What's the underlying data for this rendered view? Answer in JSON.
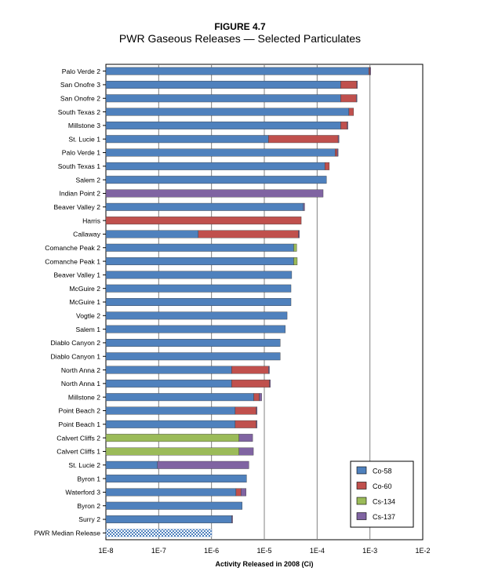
{
  "figure": {
    "title": "FIGURE 4.7",
    "subtitle": "PWR Gaseous Releases — Selected Particulates"
  },
  "colors": {
    "Co-58": "#4f81bd",
    "Co-60": "#c0504d",
    "Cs-134": "#9bbb59",
    "Cs-137": "#8064a2",
    "median": "#4f81bd"
  },
  "chart_data": {
    "type": "bar",
    "orientation": "horizontal",
    "stacked": true,
    "xscale": "log",
    "xlim": [
      1e-08,
      0.01
    ],
    "xlabel": "Activity Released in 2008 (Ci)",
    "ylabel": "",
    "xticks": [
      1e-08,
      1e-07,
      1e-06,
      1e-05,
      0.0001,
      0.001,
      0.01
    ],
    "xtick_labels": [
      "1E-8",
      "1E-7",
      "1E-6",
      "1E-5",
      "1E-4",
      "1E-3",
      "1E-2"
    ],
    "grid": "vertical gridlines at decades",
    "legend_position": "bottom-right",
    "legend": [
      "Co-58",
      "Co-60",
      "Cs-134",
      "Cs-137"
    ],
    "categories": [
      "Palo Verde 2",
      "San Onofre 3",
      "San Onofre 2",
      "South Texas 2",
      "Millstone 3",
      "St. Lucie 1",
      "Palo Verde 1",
      "South Texas 1",
      "Salem 2",
      "Indian Point 2",
      "Beaver Valley 2",
      "Harris",
      "Callaway",
      "Comanche Peak 2",
      "Comanche Peak 1",
      "Beaver Valley 1",
      "McGuire 2",
      "McGuire 1",
      "Vogtle 2",
      "Salem 1",
      "Diablo Canyon 2",
      "Diablo Canyon 1",
      "North Anna 2",
      "North Anna 1",
      "Millstone 2",
      "Point Beach 2",
      "Point Beach 1",
      "Calvert Cliffs 2",
      "Calvert Cliffs 1",
      "St. Lucie 2",
      "Byron 1",
      "Waterford 3",
      "Byron 2",
      "Surry 2",
      "PWR Median Release"
    ],
    "bars": [
      {
        "label": "Palo Verde 2",
        "segments": [
          [
            "Co-58",
            0.00095
          ],
          [
            "Co-60",
            5e-05
          ],
          [
            "Cs-137",
            1e-05
          ]
        ]
      },
      {
        "label": "San Onofre 3",
        "segments": [
          [
            "Co-58",
            0.00028
          ],
          [
            "Co-60",
            0.00028
          ],
          [
            "Cs-137",
            1e-05
          ]
        ]
      },
      {
        "label": "San Onofre 2",
        "segments": [
          [
            "Co-58",
            0.00028
          ],
          [
            "Co-60",
            0.00027
          ],
          [
            "Cs-137",
            1e-05
          ]
        ]
      },
      {
        "label": "South Texas 2",
        "segments": [
          [
            "Co-58",
            0.0004
          ],
          [
            "Co-60",
            9e-05
          ]
        ]
      },
      {
        "label": "Millstone 3",
        "segments": [
          [
            "Co-58",
            0.00028
          ],
          [
            "Co-60",
            9e-05
          ],
          [
            "Cs-137",
            1e-05
          ]
        ]
      },
      {
        "label": "St. Lucie 1",
        "segments": [
          [
            "Co-58",
            1.2e-05
          ],
          [
            "Co-60",
            0.000238
          ],
          [
            "Cs-137",
            1e-05
          ]
        ]
      },
      {
        "label": "Palo Verde 1",
        "segments": [
          [
            "Co-58",
            0.00022
          ],
          [
            "Co-60",
            2e-05
          ],
          [
            "Cs-137",
            1e-05
          ]
        ]
      },
      {
        "label": "South Texas 1",
        "segments": [
          [
            "Co-58",
            0.00014
          ],
          [
            "Co-60",
            3e-05
          ]
        ]
      },
      {
        "label": "Salem 2",
        "segments": [
          [
            "Co-58",
            0.00015
          ]
        ]
      },
      {
        "label": "Indian Point 2",
        "segments": [
          [
            "Cs-137",
            0.00013
          ]
        ]
      },
      {
        "label": "Beaver Valley 2",
        "segments": [
          [
            "Co-58",
            5.5e-05
          ],
          [
            "Cs-137",
            3e-06
          ]
        ]
      },
      {
        "label": "Harris",
        "segments": [
          [
            "Co-60",
            5e-05
          ]
        ]
      },
      {
        "label": "Callaway",
        "segments": [
          [
            "Co-58",
            5.5e-07
          ],
          [
            "Co-60",
            4.37e-05
          ],
          [
            "Cs-137",
            2e-06
          ]
        ]
      },
      {
        "label": "Comanche Peak 2",
        "segments": [
          [
            "Co-58",
            3.6e-05
          ],
          [
            "Cs-134",
            5e-06
          ]
        ]
      },
      {
        "label": "Comanche Peak 1",
        "segments": [
          [
            "Co-58",
            3.6e-05
          ],
          [
            "Cs-134",
            6e-06
          ]
        ]
      },
      {
        "label": "Beaver Valley 1",
        "segments": [
          [
            "Co-58",
            3.3e-05
          ]
        ]
      },
      {
        "label": "McGuire 2",
        "segments": [
          [
            "Co-58",
            3.2e-05
          ]
        ]
      },
      {
        "label": "McGuire 1",
        "segments": [
          [
            "Co-58",
            3.2e-05
          ]
        ]
      },
      {
        "label": "Vogtle 2",
        "segments": [
          [
            "Co-58",
            2.7e-05
          ]
        ]
      },
      {
        "label": "Salem 1",
        "segments": [
          [
            "Co-58",
            2.5e-05
          ]
        ]
      },
      {
        "label": "Diablo Canyon 2",
        "segments": [
          [
            "Co-58",
            2e-05
          ]
        ]
      },
      {
        "label": "Diablo Canyon 1",
        "segments": [
          [
            "Co-58",
            2e-05
          ]
        ]
      },
      {
        "label": "North Anna 2",
        "segments": [
          [
            "Co-58",
            2.4e-06
          ],
          [
            "Co-60",
            9.6e-06
          ],
          [
            "Cs-137",
            5e-07
          ]
        ]
      },
      {
        "label": "North Anna 1",
        "segments": [
          [
            "Co-58",
            2.4e-06
          ],
          [
            "Co-60",
            1.01e-05
          ],
          [
            "Cs-137",
            5e-07
          ]
        ]
      },
      {
        "label": "Millstone 2",
        "segments": [
          [
            "Co-58",
            6.3e-06
          ],
          [
            "Co-60",
            1.7e-06
          ],
          [
            "Cs-137",
            9e-07
          ]
        ]
      },
      {
        "label": "Point Beach 2",
        "segments": [
          [
            "Co-58",
            2.8e-06
          ],
          [
            "Co-60",
            4.2e-06
          ],
          [
            "Cs-137",
            3e-07
          ]
        ]
      },
      {
        "label": "Point Beach 1",
        "segments": [
          [
            "Co-58",
            2.8e-06
          ],
          [
            "Co-60",
            4.2e-06
          ],
          [
            "Cs-137",
            3e-07
          ]
        ]
      },
      {
        "label": "Calvert Cliffs 2",
        "segments": [
          [
            "Cs-134",
            3.3e-06
          ],
          [
            "Cs-137",
            2.7e-06
          ]
        ]
      },
      {
        "label": "Calvert Cliffs 1",
        "segments": [
          [
            "Cs-134",
            3.3e-06
          ],
          [
            "Cs-137",
            2.9e-06
          ]
        ]
      },
      {
        "label": "St. Lucie 2",
        "segments": [
          [
            "Co-58",
            8.5e-08
          ],
          [
            "Cs-137",
            5e-06
          ]
        ]
      },
      {
        "label": "Byron 1",
        "segments": [
          [
            "Co-58",
            4.6e-06
          ]
        ]
      },
      {
        "label": "Waterford 3",
        "segments": [
          [
            "Co-58",
            2.9e-06
          ],
          [
            "Co-60",
            7e-07
          ],
          [
            "Cs-137",
            9e-07
          ]
        ]
      },
      {
        "label": "Byron 2",
        "segments": [
          [
            "Co-58",
            3.8e-06
          ]
        ]
      },
      {
        "label": "Surry 2",
        "segments": [
          [
            "Co-58",
            2.4e-06
          ],
          [
            "Cs-137",
            1e-07
          ]
        ]
      },
      {
        "label": "PWR Median Release",
        "segments": [
          [
            "median",
            1e-06
          ]
        ]
      }
    ]
  }
}
